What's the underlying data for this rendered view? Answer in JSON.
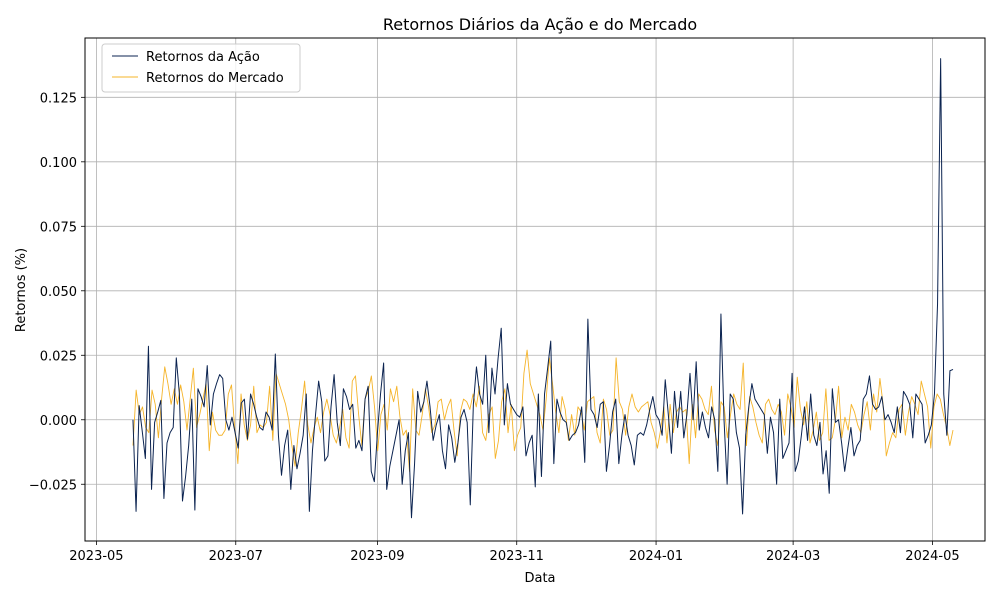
{
  "chart_data": {
    "type": "line",
    "title": "Retornos Diários da Ação e do Mercado",
    "xlabel": "Data",
    "ylabel": "Retornos (%)",
    "x_ticks": [
      "2023-05",
      "2023-07",
      "2023-09",
      "2023-11",
      "2024-01",
      "2024-03",
      "2024-05"
    ],
    "y_ticks": [
      "−0.025",
      "0.000",
      "0.025",
      "0.050",
      "0.075",
      "0.100",
      "0.125"
    ],
    "ylim": [
      -0.047,
      0.148
    ],
    "xlim": [
      "2023-04-26",
      "2024-05-24"
    ],
    "x_start": "2023-05-17",
    "x_end": "2024-05-10",
    "grid": true,
    "legend_position": "top-left",
    "series": [
      {
        "name": "Retornos da Ação",
        "color": "#0b2350",
        "values": [
          0.0,
          -0.0355,
          0.0055,
          -0.0045,
          -0.015,
          0.0285,
          -0.027,
          -0.001,
          0.003,
          0.0075,
          -0.0305,
          -0.009,
          -0.005,
          -0.003,
          0.024,
          0.01,
          -0.0315,
          -0.022,
          -0.01,
          0.008,
          -0.035,
          0.012,
          0.009,
          0.005,
          0.021,
          -0.002,
          0.01,
          0.014,
          0.0175,
          0.016,
          0.0,
          -0.004,
          0.001,
          -0.005,
          -0.011,
          0.0065,
          0.008,
          -0.0075,
          0.01,
          0.006,
          0.001,
          -0.003,
          -0.004,
          0.003,
          0.001,
          -0.004,
          0.0255,
          -0.006,
          -0.0215,
          -0.01,
          -0.004,
          -0.027,
          -0.01,
          -0.019,
          -0.013,
          -0.006,
          0.01,
          -0.0355,
          -0.012,
          0.002,
          0.015,
          0.007,
          -0.016,
          -0.014,
          0.005,
          0.0175,
          -0.001,
          -0.01,
          0.012,
          0.009,
          0.004,
          0.006,
          -0.011,
          -0.008,
          -0.012,
          0.008,
          0.013,
          -0.02,
          -0.024,
          -0.005,
          0.01,
          0.022,
          -0.027,
          -0.018,
          -0.012,
          -0.006,
          0.0,
          -0.025,
          -0.012,
          -0.005,
          -0.038,
          -0.017,
          0.011,
          0.003,
          0.007,
          0.015,
          0.005,
          -0.008,
          -0.002,
          0.002,
          -0.012,
          -0.019,
          -0.002,
          -0.007,
          -0.0165,
          -0.009,
          0.001,
          0.004,
          -0.001,
          -0.033,
          0.006,
          0.0205,
          0.01,
          0.006,
          0.025,
          -0.005,
          0.02,
          0.01,
          0.024,
          0.0355,
          -0.002,
          0.014,
          0.006,
          0.004,
          0.002,
          0.001,
          0.005,
          -0.014,
          -0.009,
          -0.006,
          -0.026,
          0.01,
          -0.022,
          0.01,
          0.02,
          0.0305,
          -0.017,
          0.008,
          0.003,
          0.0,
          -0.001,
          -0.008,
          -0.006,
          -0.005,
          -0.002,
          0.005,
          -0.0165,
          0.039,
          0.004,
          0.002,
          -0.003,
          0.006,
          0.007,
          -0.02,
          -0.01,
          0.003,
          0.008,
          -0.017,
          -0.006,
          0.002,
          -0.006,
          -0.01,
          -0.0175,
          -0.006,
          -0.005,
          -0.006,
          -0.002,
          0.004,
          0.009,
          0.002,
          0.0,
          -0.006,
          0.0155,
          0.002,
          -0.013,
          0.011,
          -0.003,
          0.011,
          -0.007,
          0.002,
          0.018,
          0.0,
          0.0225,
          -0.004,
          0.003,
          -0.003,
          -0.007,
          0.005,
          0.0,
          -0.02,
          0.041,
          0.0,
          -0.025,
          0.01,
          0.008,
          -0.005,
          -0.011,
          -0.0365,
          -0.006,
          0.005,
          0.014,
          0.008,
          0.006,
          0.004,
          0.002,
          -0.013,
          0.001,
          -0.005,
          -0.025,
          0.008,
          -0.015,
          -0.012,
          -0.009,
          0.018,
          -0.02,
          -0.016,
          -0.006,
          0.005,
          -0.008,
          0.01,
          -0.006,
          -0.01,
          -0.001,
          -0.021,
          -0.012,
          -0.0285,
          0.012,
          -0.001,
          0.0,
          -0.009,
          -0.02,
          -0.011,
          -0.003,
          -0.014,
          -0.01,
          -0.008,
          0.008,
          0.01,
          0.017,
          0.006,
          0.004,
          0.005,
          0.009,
          0.0,
          0.002,
          -0.001,
          -0.005,
          0.005,
          -0.005,
          0.011,
          0.009,
          0.006,
          -0.007,
          0.01,
          0.008,
          0.006,
          -0.009,
          -0.006,
          -0.002,
          0.01,
          0.045,
          0.14,
          0.01,
          -0.006,
          0.019,
          0.0195
        ]
      },
      {
        "name": "Retornos do Mercado",
        "color": "#f5b42a",
        "values": [
          -0.01,
          0.0115,
          0.002,
          0.005,
          -0.003,
          -0.005,
          0.0115,
          0.006,
          -0.007,
          0.008,
          0.0205,
          0.014,
          0.006,
          0.012,
          0.006,
          0.0135,
          0.007,
          -0.004,
          0.008,
          0.02,
          -0.003,
          0.002,
          0.008,
          0.014,
          -0.012,
          0.003,
          -0.004,
          -0.006,
          -0.006,
          -0.004,
          0.01,
          0.0135,
          -0.003,
          -0.017,
          0.01,
          -0.002,
          -0.008,
          -0.002,
          0.013,
          -0.005,
          -0.002,
          -0.003,
          -0.001,
          0.013,
          -0.008,
          0.018,
          0.014,
          0.01,
          0.006,
          0.0,
          -0.01,
          -0.018,
          -0.005,
          0.004,
          0.015,
          -0.002,
          -0.009,
          -0.003,
          0.001,
          -0.005,
          0.003,
          0.008,
          0.002,
          -0.006,
          -0.009,
          -0.003,
          0.004,
          -0.007,
          -0.011,
          0.015,
          0.017,
          0.002,
          -0.01,
          0.008,
          0.011,
          0.017,
          0.005,
          -0.012,
          0.002,
          0.006,
          -0.004,
          0.012,
          0.007,
          0.013,
          0.001,
          -0.006,
          -0.004,
          -0.02,
          0.012,
          -0.004,
          -0.006,
          0.002,
          0.012,
          0.005,
          -0.005,
          -0.002,
          0.007,
          0.008,
          0.0,
          0.005,
          0.008,
          -0.004,
          -0.014,
          0.003,
          0.008,
          0.007,
          0.004,
          0.01,
          0.005,
          0.013,
          -0.005,
          -0.008,
          0.002,
          0.005,
          -0.015,
          -0.008,
          0.007,
          0.012,
          -0.005,
          0.006,
          -0.012,
          -0.006,
          -0.003,
          0.018,
          0.027,
          0.014,
          0.01,
          0.006,
          0.002,
          -0.004,
          0.008,
          0.024,
          0.014,
          0.003,
          -0.005,
          0.009,
          0.004,
          -0.008,
          0.002,
          -0.006,
          0.005,
          0.003,
          -0.004,
          0.007,
          0.008,
          0.009,
          -0.005,
          -0.009,
          0.008,
          0.004,
          -0.006,
          -0.004,
          0.024,
          0.007,
          0.004,
          -0.006,
          0.005,
          0.01,
          0.005,
          0.003,
          0.005,
          0.006,
          0.007,
          -0.001,
          -0.005,
          -0.011,
          -0.004,
          0.005,
          -0.009,
          0.006,
          -0.005,
          0.003,
          0.005,
          0.003,
          0.004,
          -0.017,
          0.006,
          -0.007,
          0.01,
          0.008,
          0.004,
          0.002,
          0.013,
          -0.004,
          -0.01,
          0.007,
          0.005,
          -0.007,
          0.002,
          0.01,
          0.006,
          0.004,
          0.022,
          -0.01,
          0.009,
          0.005,
          -0.001,
          -0.006,
          -0.009,
          0.006,
          0.008,
          0.004,
          0.002,
          0.006,
          0.003,
          -0.006,
          0.01,
          0.005,
          -0.003,
          0.0165,
          0.004,
          -0.002,
          0.007,
          -0.009,
          -0.004,
          0.003,
          -0.008,
          -0.005,
          0.012,
          -0.008,
          -0.007,
          0.0,
          0.013,
          -0.007,
          0.001,
          -0.004,
          0.006,
          0.003,
          -0.002,
          -0.005,
          0.002,
          0.007,
          -0.004,
          0.01,
          0.003,
          0.016,
          0.006,
          -0.014,
          -0.009,
          -0.005,
          -0.007,
          0.004,
          0.006,
          -0.006,
          0.003,
          0.009,
          0.006,
          0.002,
          0.015,
          0.01,
          0.005,
          -0.011,
          0.005,
          0.01,
          0.008,
          0.002,
          -0.003,
          -0.01,
          -0.004
        ]
      }
    ]
  }
}
